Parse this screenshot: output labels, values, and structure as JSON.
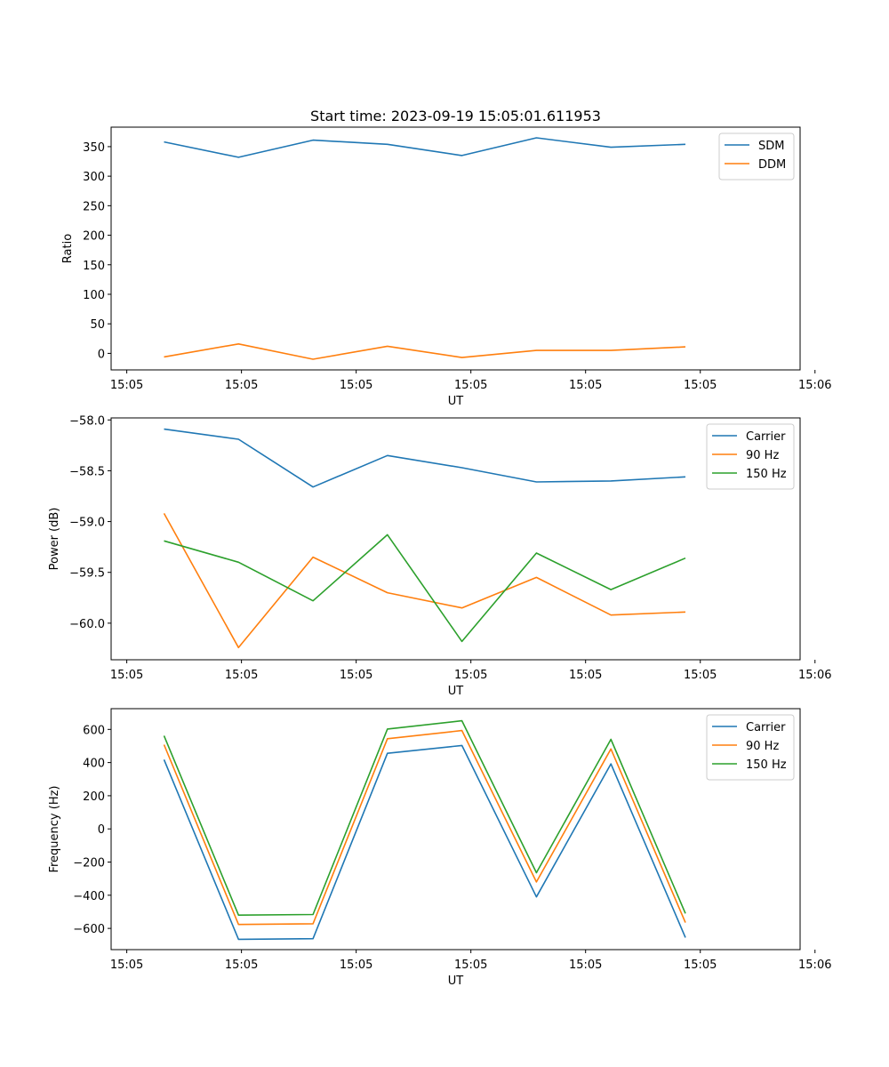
{
  "chart_data": [
    {
      "type": "line",
      "title": "Start time: 2023-09-19 15:05:01.611953",
      "xlabel": "UT",
      "ylabel": "Ratio",
      "x": [
        1,
        2,
        3,
        4,
        5,
        6,
        7,
        8
      ],
      "xlim": [
        0.29,
        9.54
      ],
      "x_ticks": [
        0.5,
        2.04,
        3.58,
        5.12,
        6.66,
        8.2,
        9.74
      ],
      "x_tick_labels": [
        "15:05",
        "15:05",
        "15:05",
        "15:05",
        "15:05",
        "15:05",
        "15:06"
      ],
      "ylim": [
        -28,
        383
      ],
      "y_ticks": [
        0,
        50,
        100,
        150,
        200,
        250,
        300,
        350
      ],
      "y_tick_labels": [
        "0",
        "50",
        "100",
        "150",
        "200",
        "250",
        "300",
        "350"
      ],
      "legend_position": "top-right",
      "series": [
        {
          "name": "SDM",
          "color": "#1f77b4",
          "values": [
            358,
            332,
            361,
            354,
            335,
            365,
            349,
            354
          ]
        },
        {
          "name": "DDM",
          "color": "#ff7f0e",
          "values": [
            -6,
            16,
            -10,
            12,
            -7,
            5,
            5,
            11
          ]
        }
      ]
    },
    {
      "type": "line",
      "title": "",
      "xlabel": "UT",
      "ylabel": "Power (dB)",
      "x": [
        1,
        2,
        3,
        4,
        5,
        6,
        7,
        8
      ],
      "xlim": [
        0.29,
        9.54
      ],
      "x_ticks": [
        0.5,
        2.04,
        3.58,
        5.12,
        6.66,
        8.2,
        9.74
      ],
      "x_tick_labels": [
        "15:05",
        "15:05",
        "15:05",
        "15:05",
        "15:05",
        "15:05",
        "15:06"
      ],
      "ylim": [
        -60.36,
        -57.98
      ],
      "y_ticks": [
        -58.0,
        -58.5,
        -59.0,
        -59.5,
        -60.0
      ],
      "y_tick_labels": [
        "−58.0",
        "−58.5",
        "−59.0",
        "−59.5",
        "−60.0"
      ],
      "legend_position": "top-right",
      "series": [
        {
          "name": "Carrier",
          "color": "#1f77b4",
          "values": [
            -58.09,
            -58.19,
            -58.66,
            -58.35,
            -58.47,
            -58.61,
            -58.6,
            -58.56
          ]
        },
        {
          "name": "90 Hz",
          "color": "#ff7f0e",
          "values": [
            -58.92,
            -60.24,
            -59.35,
            -59.7,
            -59.85,
            -59.55,
            -59.92,
            -59.89
          ]
        },
        {
          "name": "150 Hz",
          "color": "#2ca02c",
          "values": [
            -59.19,
            -59.4,
            -59.78,
            -59.13,
            -60.18,
            -59.31,
            -59.67,
            -59.36
          ]
        }
      ]
    },
    {
      "type": "line",
      "title": "",
      "xlabel": "UT",
      "ylabel": "Frequency (Hz)",
      "x": [
        1,
        2,
        3,
        4,
        5,
        6,
        7,
        8
      ],
      "xlim": [
        0.29,
        9.54
      ],
      "x_ticks": [
        0.5,
        2.04,
        3.58,
        5.12,
        6.66,
        8.2,
        9.74
      ],
      "x_tick_labels": [
        "15:05",
        "15:05",
        "15:05",
        "15:05",
        "15:05",
        "15:05",
        "15:06"
      ],
      "ylim": [
        -728,
        725
      ],
      "y_ticks": [
        -600,
        -400,
        -200,
        0,
        200,
        400,
        600
      ],
      "y_tick_labels": [
        "−600",
        "−400",
        "−200",
        "0",
        "200",
        "400",
        "600"
      ],
      "legend_position": "top-right",
      "series": [
        {
          "name": "Carrier",
          "color": "#1f77b4",
          "values": [
            418,
            -666,
            -662,
            456,
            503,
            -410,
            392,
            -655
          ]
        },
        {
          "name": "90 Hz",
          "color": "#ff7f0e",
          "values": [
            508,
            -576,
            -572,
            544,
            593,
            -320,
            482,
            -565
          ]
        },
        {
          "name": "150 Hz",
          "color": "#2ca02c",
          "values": [
            562,
            -520,
            -516,
            602,
            652,
            -264,
            540,
            -510
          ]
        }
      ]
    }
  ]
}
